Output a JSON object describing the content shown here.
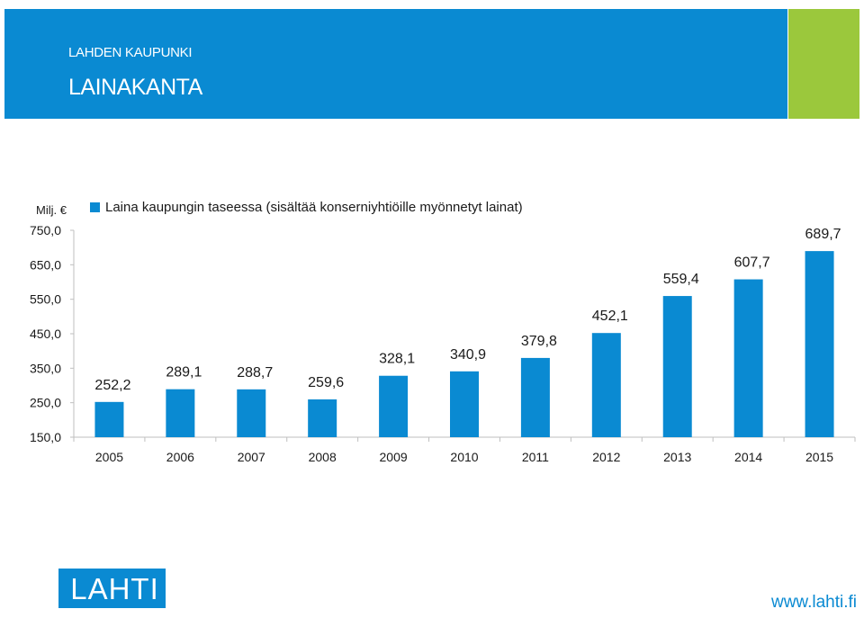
{
  "header": {
    "org_name": "LAHDEN KAUPUNKI",
    "title": "LAINAKANTA",
    "colors": {
      "header_bg": "#0a8ad2",
      "accent": "#9bc83c"
    }
  },
  "chart_data": {
    "type": "bar",
    "unit_label": "Milj. €",
    "legend": {
      "placement": "top",
      "entries": [
        "Laina kaupungin taseessa (sisältää konserniyhtiöille myönnetyt lainat)"
      ]
    },
    "categories": [
      "2005",
      "2006",
      "2007",
      "2008",
      "2009",
      "2010",
      "2011",
      "2012",
      "2013",
      "2014",
      "2015"
    ],
    "series": [
      {
        "name": "Laina kaupungin taseessa (sisältää konserniyhtiöille myönnetyt lainat)",
        "values": [
          252.2,
          289.1,
          288.7,
          259.6,
          328.1,
          340.9,
          379.8,
          452.1,
          559.4,
          607.7,
          689.7
        ],
        "labels": [
          "252,2",
          "289,1",
          "288,7",
          "259,6",
          "328,1",
          "340,9",
          "379,8",
          "452,1",
          "559,4",
          "607,7",
          "689,7"
        ],
        "color": "#0a8ad2"
      }
    ],
    "ylim": [
      150,
      750
    ],
    "yticks": [
      150,
      250,
      350,
      450,
      550,
      650,
      750
    ],
    "ytick_labels": [
      "150,0",
      "250,0",
      "350,0",
      "450,0",
      "550,0",
      "650,0",
      "750,0"
    ],
    "grid": false
  },
  "footer": {
    "logo_text": "LAHTI",
    "website": "www.lahti.fi"
  }
}
